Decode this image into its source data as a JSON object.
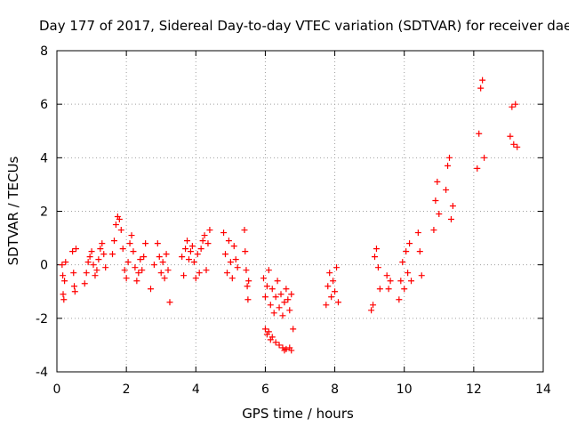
{
  "chart_data": {
    "type": "scatter",
    "title": "Day 177 of 2017, Sidereal Day-to-day VTEC variation (SDTVAR) for receiver daej",
    "xlabel": "GPS time / hours",
    "ylabel": "SDTVAR / TECUs",
    "xlim": [
      0,
      14
    ],
    "ylim": [
      -4,
      8
    ],
    "xticks": [
      0,
      2,
      4,
      6,
      8,
      10,
      12,
      14
    ],
    "yticks": [
      -4,
      -2,
      0,
      2,
      4,
      6,
      8
    ],
    "grid": true,
    "marker": "+",
    "color": "#ff0000",
    "series": [
      {
        "name": "SDTVAR",
        "points": [
          [
            0.15,
            0.0
          ],
          [
            0.17,
            -0.4
          ],
          [
            0.18,
            -1.1
          ],
          [
            0.2,
            -1.3
          ],
          [
            0.22,
            -0.6
          ],
          [
            0.25,
            0.1
          ],
          [
            0.45,
            0.5
          ],
          [
            0.48,
            -0.3
          ],
          [
            0.5,
            -0.8
          ],
          [
            0.52,
            -1.0
          ],
          [
            0.55,
            0.6
          ],
          [
            0.8,
            -0.7
          ],
          [
            0.85,
            -0.3
          ],
          [
            0.9,
            0.1
          ],
          [
            0.95,
            0.3
          ],
          [
            1.0,
            0.5
          ],
          [
            1.05,
            0.0
          ],
          [
            1.1,
            -0.4
          ],
          [
            1.15,
            -0.2
          ],
          [
            1.2,
            0.2
          ],
          [
            1.25,
            0.6
          ],
          [
            1.3,
            0.8
          ],
          [
            1.35,
            0.4
          ],
          [
            1.4,
            -0.1
          ],
          [
            1.6,
            0.4
          ],
          [
            1.65,
            0.9
          ],
          [
            1.7,
            1.5
          ],
          [
            1.75,
            1.8
          ],
          [
            1.8,
            1.7
          ],
          [
            1.85,
            1.3
          ],
          [
            1.9,
            0.6
          ],
          [
            1.95,
            -0.2
          ],
          [
            2.0,
            -0.5
          ],
          [
            2.05,
            0.1
          ],
          [
            2.1,
            0.8
          ],
          [
            2.15,
            1.1
          ],
          [
            2.2,
            0.5
          ],
          [
            2.25,
            -0.1
          ],
          [
            2.3,
            -0.6
          ],
          [
            2.35,
            -0.3
          ],
          [
            2.4,
            0.2
          ],
          [
            2.45,
            -0.2
          ],
          [
            2.5,
            0.3
          ],
          [
            2.55,
            0.8
          ],
          [
            2.7,
            -0.9
          ],
          [
            2.8,
            0.0
          ],
          [
            2.9,
            0.8
          ],
          [
            2.95,
            0.3
          ],
          [
            3.0,
            -0.3
          ],
          [
            3.05,
            0.1
          ],
          [
            3.1,
            -0.5
          ],
          [
            3.15,
            0.4
          ],
          [
            3.2,
            -0.2
          ],
          [
            3.25,
            -1.4
          ],
          [
            3.6,
            0.3
          ],
          [
            3.65,
            -0.4
          ],
          [
            3.7,
            0.6
          ],
          [
            3.75,
            0.9
          ],
          [
            3.8,
            0.2
          ],
          [
            3.85,
            0.5
          ],
          [
            3.9,
            0.7
          ],
          [
            3.95,
            0.1
          ],
          [
            4.0,
            -0.5
          ],
          [
            4.05,
            0.4
          ],
          [
            4.1,
            -0.3
          ],
          [
            4.15,
            0.6
          ],
          [
            4.2,
            0.9
          ],
          [
            4.25,
            1.1
          ],
          [
            4.3,
            -0.2
          ],
          [
            4.35,
            0.8
          ],
          [
            4.4,
            1.3
          ],
          [
            4.8,
            1.2
          ],
          [
            4.85,
            0.4
          ],
          [
            4.9,
            -0.3
          ],
          [
            4.95,
            0.9
          ],
          [
            5.0,
            0.1
          ],
          [
            5.05,
            -0.5
          ],
          [
            5.1,
            0.7
          ],
          [
            5.15,
            0.2
          ],
          [
            5.2,
            -0.1
          ],
          [
            5.4,
            1.3
          ],
          [
            5.42,
            0.5
          ],
          [
            5.45,
            -0.2
          ],
          [
            5.48,
            -0.8
          ],
          [
            5.5,
            -1.3
          ],
          [
            5.52,
            -0.6
          ],
          [
            5.95,
            -0.5
          ],
          [
            6.0,
            -1.2
          ],
          [
            6.05,
            -0.8
          ],
          [
            6.1,
            -0.2
          ],
          [
            6.15,
            -1.5
          ],
          [
            6.2,
            -0.9
          ],
          [
            6.25,
            -1.8
          ],
          [
            6.3,
            -1.2
          ],
          [
            6.35,
            -0.6
          ],
          [
            6.4,
            -1.6
          ],
          [
            6.45,
            -1.1
          ],
          [
            6.5,
            -1.9
          ],
          [
            6.55,
            -1.4
          ],
          [
            6.6,
            -0.9
          ],
          [
            6.65,
            -1.3
          ],
          [
            6.7,
            -1.7
          ],
          [
            6.75,
            -1.1
          ],
          [
            6.0,
            -2.4
          ],
          [
            6.05,
            -2.6
          ],
          [
            6.1,
            -2.5
          ],
          [
            6.15,
            -2.8
          ],
          [
            6.2,
            -2.7
          ],
          [
            6.3,
            -2.9
          ],
          [
            6.4,
            -3.0
          ],
          [
            6.5,
            -3.1
          ],
          [
            6.55,
            -3.2
          ],
          [
            6.6,
            -3.15
          ],
          [
            6.7,
            -3.1
          ],
          [
            6.75,
            -3.2
          ],
          [
            6.8,
            -2.4
          ],
          [
            7.75,
            -1.5
          ],
          [
            7.8,
            -0.8
          ],
          [
            7.85,
            -0.3
          ],
          [
            7.9,
            -1.2
          ],
          [
            7.95,
            -0.6
          ],
          [
            8.0,
            -1.0
          ],
          [
            8.05,
            -0.1
          ],
          [
            8.1,
            -1.4
          ],
          [
            9.05,
            -1.7
          ],
          [
            9.1,
            -1.5
          ],
          [
            9.15,
            0.3
          ],
          [
            9.2,
            0.6
          ],
          [
            9.25,
            -0.1
          ],
          [
            9.3,
            -0.9
          ],
          [
            9.5,
            -0.4
          ],
          [
            9.55,
            -0.9
          ],
          [
            9.6,
            -0.6
          ],
          [
            9.85,
            -1.3
          ],
          [
            9.9,
            -0.6
          ],
          [
            9.95,
            0.1
          ],
          [
            10.0,
            -0.9
          ],
          [
            10.05,
            0.5
          ],
          [
            10.1,
            -0.3
          ],
          [
            10.15,
            0.8
          ],
          [
            10.2,
            -0.6
          ],
          [
            10.4,
            1.2
          ],
          [
            10.45,
            0.5
          ],
          [
            10.5,
            -0.4
          ],
          [
            10.85,
            1.3
          ],
          [
            10.9,
            2.4
          ],
          [
            10.95,
            3.1
          ],
          [
            11.0,
            1.9
          ],
          [
            11.2,
            2.8
          ],
          [
            11.25,
            3.7
          ],
          [
            11.3,
            4.0
          ],
          [
            11.35,
            1.7
          ],
          [
            11.4,
            2.2
          ],
          [
            12.1,
            3.6
          ],
          [
            12.15,
            4.9
          ],
          [
            12.2,
            6.6
          ],
          [
            12.25,
            6.9
          ],
          [
            12.3,
            4.0
          ],
          [
            13.05,
            4.8
          ],
          [
            13.1,
            5.9
          ],
          [
            13.15,
            4.5
          ],
          [
            13.2,
            6.0
          ],
          [
            13.25,
            4.4
          ]
        ]
      }
    ]
  }
}
